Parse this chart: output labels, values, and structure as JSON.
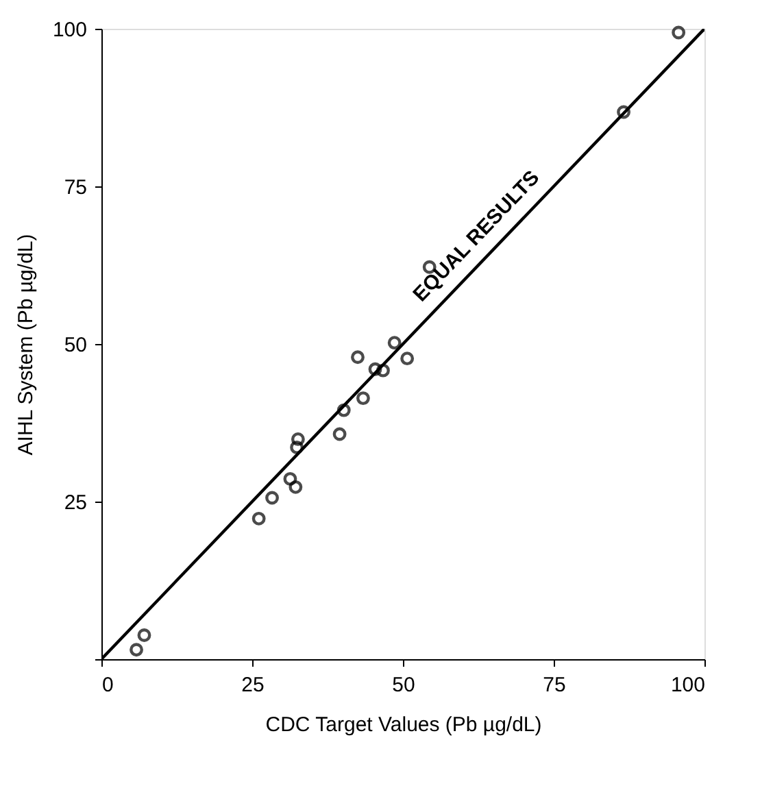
{
  "chart_data": {
    "type": "scatter",
    "xlabel": "CDC Target Values (Pb µg/dL)",
    "ylabel": "AIHL System (Pb µg/dL)",
    "xlim": [
      0,
      100
    ],
    "ylim": [
      0,
      100
    ],
    "xticks": [
      0,
      25,
      50,
      75,
      100
    ],
    "yticks": [
      {
        "value": 0,
        "label": null
      },
      25,
      50,
      75,
      100
    ],
    "grid": false,
    "series": [
      {
        "color": "#000000",
        "marker": "circle",
        "x": [
          5.8,
          7.1,
          26.1,
          28.3,
          31.3,
          32.2,
          32.4,
          32.6,
          39.5,
          40.2,
          43.4,
          42.5,
          45.4,
          46.7,
          48.6,
          50.7,
          54.4,
          86.6,
          95.7
        ],
        "values": [
          1.5,
          3.8,
          22.3,
          25.6,
          28.6,
          27.3,
          33.6,
          34.9,
          35.7,
          39.5,
          41.4,
          47.9,
          46,
          45.8,
          50.2,
          47.7,
          62.2,
          86.8,
          99.4
        ]
      },
      {
        "type": "line",
        "color": "#000000",
        "line_style": "solid",
        "x": [
          0,
          100
        ],
        "values": [
          0,
          100
        ]
      }
    ],
    "annotations": [
      {
        "text": "EQUAL RESULTS",
        "x": 66,
        "y": 66
      }
    ]
  }
}
